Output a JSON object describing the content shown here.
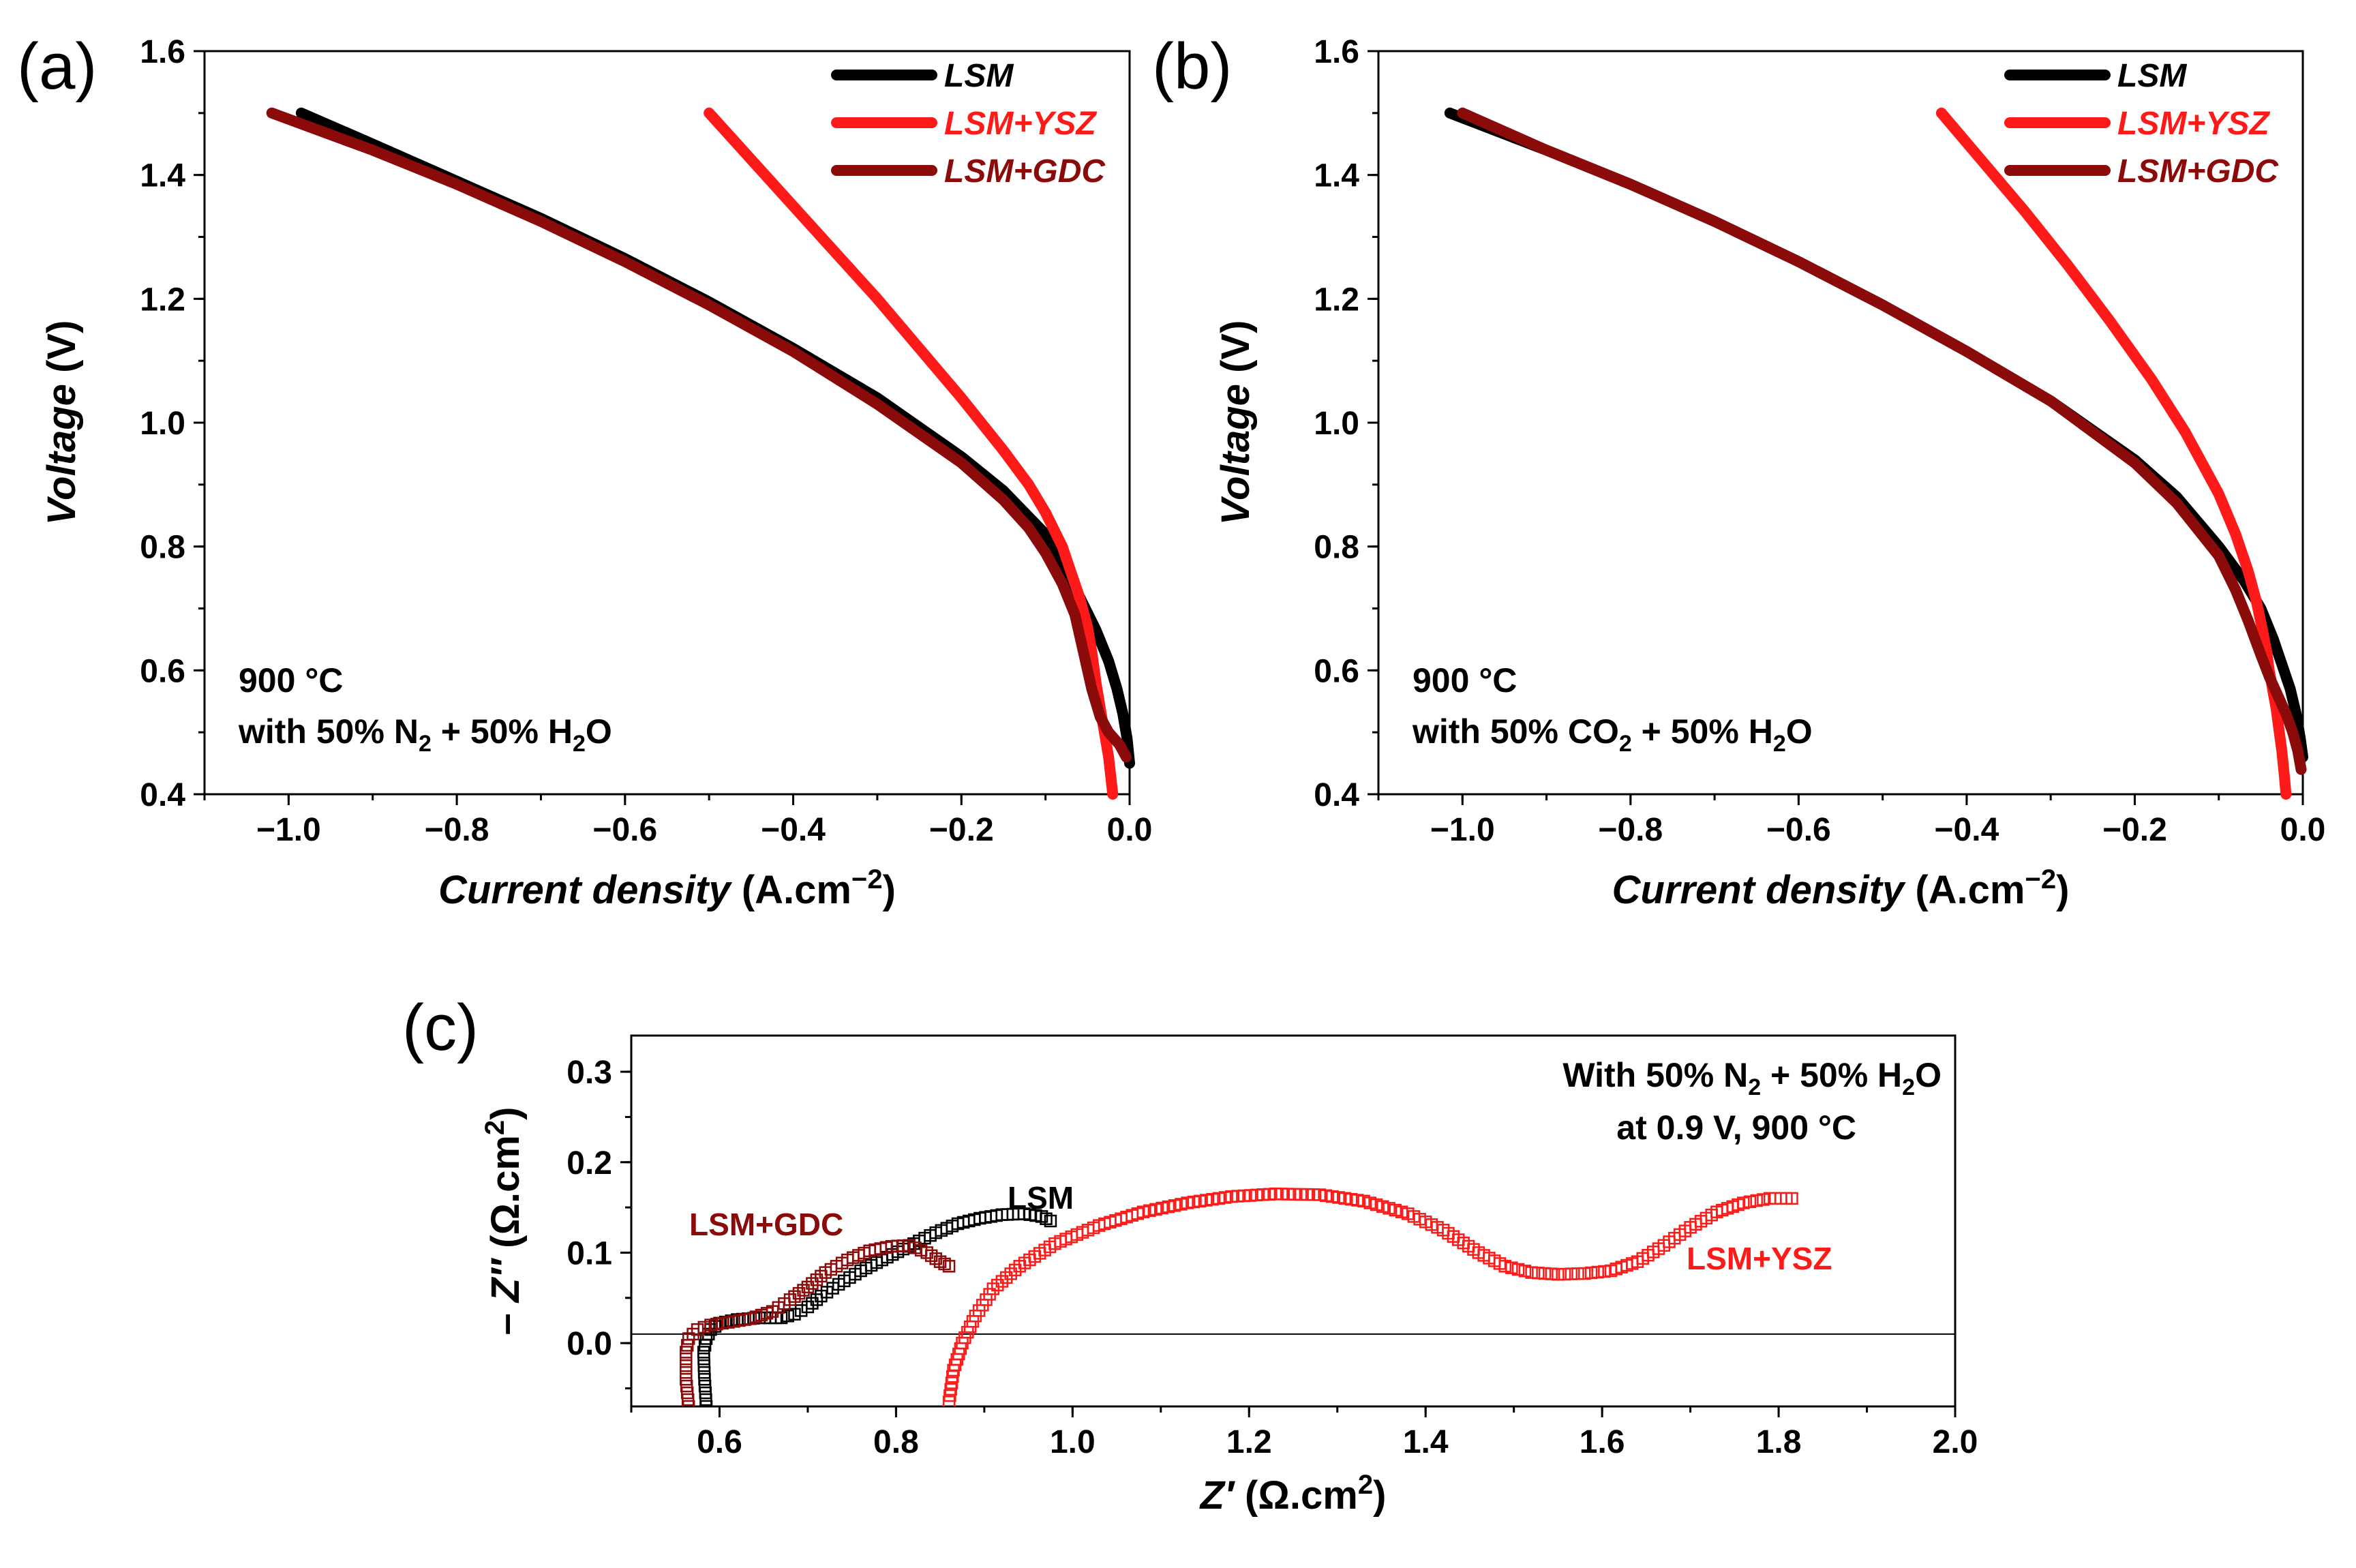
{
  "colors": {
    "LSM": "#000000",
    "LSM+YSZ": "#ff1a1a",
    "LSM+GDC": "#8b0a0a"
  },
  "chart_data": [
    {
      "panel": "(a)",
      "type": "line",
      "xlabel": {
        "italic": "Current density",
        "rest": " (A.cm",
        "sup": "−2",
        "close": ")"
      },
      "ylabel": {
        "italic": "Voltage",
        "rest": " (V)"
      },
      "xlim": [
        -1.1,
        0.0
      ],
      "ylim": [
        0.4,
        1.6
      ],
      "xticks": [
        -1.0,
        -0.8,
        -0.6,
        -0.4,
        -0.2,
        0.0
      ],
      "xtick_labels": [
        "−1.0",
        "−0.8",
        "−0.6",
        "−0.4",
        "−0.2",
        "0.0"
      ],
      "yticks": [
        0.4,
        0.6,
        0.8,
        1.0,
        1.2,
        1.4,
        1.6
      ],
      "ytick_labels": [
        "0.4",
        "0.6",
        "0.8",
        "1.0",
        "1.2",
        "1.4",
        "1.6"
      ],
      "legend": [
        "LSM",
        "LSM+YSZ",
        "LSM+GDC"
      ],
      "legend_position": "top-right",
      "annotation": {
        "line1": "900 °C",
        "line2_a": "with 50% N",
        "sub1": "2",
        "line2_b": " + 50% H",
        "sub2": "2",
        "line2_c": "O"
      },
      "series": [
        {
          "name": "LSM",
          "x": [
            -0.985,
            -0.9,
            -0.8,
            -0.7,
            -0.6,
            -0.5,
            -0.4,
            -0.3,
            -0.2,
            -0.15,
            -0.1,
            -0.08,
            -0.06,
            -0.04,
            -0.025,
            -0.015,
            -0.008,
            -0.003,
            0.0
          ],
          "y": [
            1.5,
            1.45,
            1.39,
            1.33,
            1.265,
            1.195,
            1.12,
            1.04,
            0.945,
            0.89,
            0.82,
            0.775,
            0.72,
            0.665,
            0.615,
            0.57,
            0.53,
            0.49,
            0.45
          ]
        },
        {
          "name": "LSM+YSZ",
          "x": [
            -0.5,
            -0.45,
            -0.4,
            -0.35,
            -0.3,
            -0.25,
            -0.2,
            -0.15,
            -0.12,
            -0.1,
            -0.08,
            -0.07,
            -0.06,
            -0.05,
            -0.045,
            -0.04,
            -0.035,
            -0.03,
            -0.025,
            -0.02
          ],
          "y": [
            1.5,
            1.425,
            1.35,
            1.275,
            1.2,
            1.12,
            1.04,
            0.955,
            0.9,
            0.855,
            0.8,
            0.76,
            0.72,
            0.67,
            0.63,
            0.58,
            0.54,
            0.5,
            0.46,
            0.4
          ]
        },
        {
          "name": "LSM+GDC",
          "x": [
            -1.02,
            -0.9,
            -0.8,
            -0.7,
            -0.6,
            -0.5,
            -0.4,
            -0.3,
            -0.2,
            -0.15,
            -0.12,
            -0.1,
            -0.08,
            -0.065,
            -0.055,
            -0.045,
            -0.035,
            -0.025,
            -0.012,
            -0.004
          ],
          "y": [
            1.5,
            1.44,
            1.385,
            1.325,
            1.26,
            1.19,
            1.115,
            1.03,
            0.935,
            0.875,
            0.83,
            0.79,
            0.74,
            0.69,
            0.63,
            0.57,
            0.525,
            0.5,
            0.48,
            0.46
          ]
        }
      ]
    },
    {
      "panel": "(b)",
      "type": "line",
      "xlabel": {
        "italic": "Current density",
        "rest": " (A.cm",
        "sup": "−2",
        "close": ")"
      },
      "ylabel": {
        "italic": "Voltage",
        "rest": " (V)"
      },
      "xlim": [
        -1.1,
        0.0
      ],
      "ylim": [
        0.4,
        1.6
      ],
      "xticks": [
        -1.0,
        -0.8,
        -0.6,
        -0.4,
        -0.2,
        0.0
      ],
      "xtick_labels": [
        "−1.0",
        "−0.8",
        "−0.6",
        "−0.4",
        "−0.2",
        "0.0"
      ],
      "yticks": [
        0.4,
        0.6,
        0.8,
        1.0,
        1.2,
        1.4,
        1.6
      ],
      "ytick_labels": [
        "0.4",
        "0.6",
        "0.8",
        "1.0",
        "1.2",
        "1.4",
        "1.6"
      ],
      "legend": [
        "LSM",
        "LSM+YSZ",
        "LSM+GDC"
      ],
      "legend_position": "top-right",
      "annotation": {
        "line1": "900 °C",
        "line2_a": "with 50% CO",
        "sub1": "2",
        "line2_b": " + 50% H",
        "sub2": "2",
        "line2_c": "O"
      },
      "series": [
        {
          "name": "LSM",
          "x": [
            -1.015,
            -0.9,
            -0.8,
            -0.7,
            -0.6,
            -0.5,
            -0.4,
            -0.3,
            -0.2,
            -0.15,
            -0.1,
            -0.07,
            -0.05,
            -0.035,
            -0.025,
            -0.015,
            -0.008,
            -0.003,
            0.0
          ],
          "y": [
            1.5,
            1.44,
            1.385,
            1.325,
            1.26,
            1.19,
            1.115,
            1.035,
            0.94,
            0.88,
            0.8,
            0.745,
            0.7,
            0.65,
            0.61,
            0.57,
            0.53,
            0.49,
            0.46
          ]
        },
        {
          "name": "LSM+YSZ",
          "x": [
            -0.43,
            -0.38,
            -0.33,
            -0.28,
            -0.23,
            -0.18,
            -0.14,
            -0.1,
            -0.08,
            -0.065,
            -0.055,
            -0.048,
            -0.043,
            -0.04,
            -0.036,
            -0.032,
            -0.028,
            -0.025,
            -0.022,
            -0.02
          ],
          "y": [
            1.5,
            1.42,
            1.34,
            1.255,
            1.165,
            1.07,
            0.985,
            0.885,
            0.82,
            0.76,
            0.71,
            0.665,
            0.63,
            0.6,
            0.57,
            0.54,
            0.5,
            0.47,
            0.43,
            0.4
          ]
        },
        {
          "name": "LSM+GDC",
          "x": [
            -1.0,
            -0.9,
            -0.8,
            -0.7,
            -0.6,
            -0.5,
            -0.4,
            -0.3,
            -0.2,
            -0.15,
            -0.1,
            -0.08,
            -0.065,
            -0.05,
            -0.04,
            -0.03,
            -0.02,
            -0.012,
            -0.006,
            -0.002
          ],
          "y": [
            1.5,
            1.44,
            1.385,
            1.325,
            1.26,
            1.19,
            1.115,
            1.035,
            0.935,
            0.87,
            0.785,
            0.73,
            0.68,
            0.625,
            0.59,
            0.56,
            0.53,
            0.5,
            0.47,
            0.44
          ]
        }
      ]
    },
    {
      "panel": "(c)",
      "type": "scatter",
      "xlabel": {
        "italic": "Z′",
        "rest": " (Ω.cm",
        "sup": "2",
        "close": ")"
      },
      "ylabel": {
        "prefix": "– ",
        "italic": "Z″",
        "rest": " (Ω.cm",
        "sup": "2",
        "close": ")"
      },
      "xlim": [
        0.5,
        2.0
      ],
      "ylim": [
        -0.07,
        0.34
      ],
      "xticks": [
        0.6,
        0.8,
        1.0,
        1.2,
        1.4,
        1.6,
        1.8,
        2.0
      ],
      "xtick_labels": [
        "0.6",
        "0.8",
        "1.0",
        "1.2",
        "1.4",
        "1.6",
        "1.8",
        "2.0"
      ],
      "yticks": [
        0.0,
        0.1,
        0.2,
        0.3
      ],
      "ytick_labels": [
        "0.0",
        "0.1",
        "0.2",
        "0.3"
      ],
      "reference_line_y": 0.01,
      "annotation": {
        "line1_a": "With 50% N",
        "sub1": "2",
        "line1_b": " + 50% H",
        "sub2": "2",
        "line1_c": "O",
        "line2": "at 0.9 V, 900 °C"
      },
      "series_labels": [
        "LSM",
        "LSM+YSZ",
        "LSM+GDC"
      ],
      "series": [
        {
          "name": "LSM",
          "x": [
            0.585,
            0.583,
            0.582,
            0.585,
            0.59,
            0.6,
            0.62,
            0.645,
            0.67,
            0.685,
            0.7,
            0.715,
            0.735,
            0.76,
            0.79,
            0.82,
            0.845,
            0.87,
            0.895,
            0.92,
            0.945,
            0.965,
            0.975
          ],
          "y": [
            -0.07,
            -0.04,
            -0.01,
            0.005,
            0.015,
            0.022,
            0.026,
            0.028,
            0.028,
            0.032,
            0.04,
            0.052,
            0.065,
            0.08,
            0.095,
            0.11,
            0.122,
            0.132,
            0.138,
            0.142,
            0.143,
            0.14,
            0.135
          ]
        },
        {
          "name": "LSM+YSZ",
          "x": [
            0.86,
            0.865,
            0.875,
            0.89,
            0.91,
            0.94,
            0.98,
            1.03,
            1.08,
            1.13,
            1.18,
            1.23,
            1.28,
            1.33,
            1.38,
            1.42,
            1.46,
            1.49,
            1.52,
            1.55,
            1.58,
            1.61,
            1.64,
            1.67,
            1.7,
            1.73,
            1.76,
            1.79,
            1.815
          ],
          "y": [
            -0.065,
            -0.03,
            0.0,
            0.03,
            0.06,
            0.085,
            0.11,
            0.13,
            0.145,
            0.155,
            0.162,
            0.165,
            0.164,
            0.157,
            0.143,
            0.125,
            0.1,
            0.085,
            0.078,
            0.076,
            0.077,
            0.08,
            0.09,
            0.108,
            0.128,
            0.145,
            0.155,
            0.16,
            0.16
          ]
        },
        {
          "name": "LSM+GDC",
          "x": [
            0.565,
            0.562,
            0.562,
            0.565,
            0.575,
            0.59,
            0.61,
            0.635,
            0.66,
            0.68,
            0.7,
            0.72,
            0.745,
            0.77,
            0.795,
            0.815,
            0.835,
            0.85,
            0.86
          ],
          "y": [
            -0.07,
            -0.04,
            -0.01,
            0.005,
            0.015,
            0.02,
            0.023,
            0.027,
            0.035,
            0.048,
            0.062,
            0.078,
            0.092,
            0.102,
            0.107,
            0.108,
            0.1,
            0.09,
            0.085
          ]
        }
      ]
    }
  ]
}
